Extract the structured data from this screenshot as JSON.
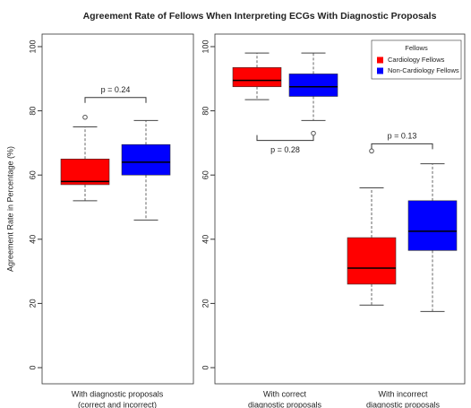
{
  "chart_data": {
    "type": "box",
    "title": "Agreement Rate of Fellows When Interpreting ECGs With Diagnostic Proposals",
    "y_label": "Agreement Rate in Percentage (%)",
    "ylim": [
      0,
      100
    ],
    "yticks": [
      0,
      20,
      40,
      60,
      80,
      100
    ],
    "legend": {
      "title": "Fellows",
      "position": "top-right"
    },
    "series": [
      {
        "name": "Cardiology Fellows",
        "color": "#ff0000"
      },
      {
        "name": "Non-Cardiology Fellows",
        "color": "#0000ff"
      }
    ],
    "panels": [
      {
        "groups": [
          {
            "label": [
              "With diagnostic proposals",
              "(correct and incorrect)"
            ],
            "annotation": "p = 0.24",
            "boxes": [
              {
                "min": 52,
                "q1": 57,
                "median": 58,
                "q3": 65,
                "max": 75,
                "outliers": [
                  78
                ]
              },
              {
                "min": 46,
                "q1": 60,
                "median": 64,
                "q3": 69.5,
                "max": 77,
                "outliers": []
              }
            ]
          }
        ]
      },
      {
        "groups": [
          {
            "label": [
              "With correct",
              "diagnostic proposals"
            ],
            "annotation": "p = 0.28",
            "boxes": [
              {
                "min": 83.5,
                "q1": 87.5,
                "median": 89.5,
                "q3": 93.5,
                "max": 98,
                "outliers": []
              },
              {
                "min": 77,
                "q1": 84.5,
                "median": 87.5,
                "q3": 91.5,
                "max": 98,
                "outliers": [
                  73
                ]
              }
            ]
          },
          {
            "label": [
              "With incorrect",
              "diagnostic proposals"
            ],
            "annotation": "p = 0.13",
            "boxes": [
              {
                "min": 19.5,
                "q1": 26,
                "median": 31,
                "q3": 40.5,
                "max": 56,
                "outliers": [
                  67.5
                ]
              },
              {
                "min": 17.5,
                "q1": 36.5,
                "median": 42.5,
                "q3": 52,
                "max": 63.5,
                "outliers": []
              }
            ]
          }
        ]
      }
    ]
  }
}
